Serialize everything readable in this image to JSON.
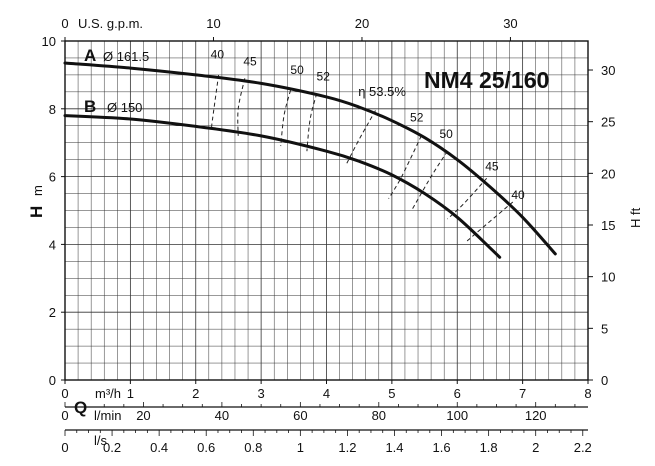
{
  "chart_data": {
    "type": "line",
    "title": "NM4 25/160",
    "xlabel": "Q",
    "ylabel_left": "H",
    "ylabel_left_unit": "m",
    "ylabel_right": "H ft",
    "xlim": [
      0,
      8
    ],
    "ylim": [
      0,
      10
    ],
    "grid": true,
    "axes": {
      "m3h": {
        "unit": "m³/h",
        "ticks": [
          "0",
          "1",
          "2",
          "3",
          "4",
          "5",
          "6",
          "7",
          "8"
        ]
      },
      "lmin": {
        "unit": "l/min",
        "ticks": [
          "0",
          "20",
          "40",
          "60",
          "80",
          "100",
          "120"
        ]
      },
      "ls": {
        "unit": "l/s",
        "ticks": [
          "0",
          "0.2",
          "0.4",
          "0.6",
          "0.8",
          "1",
          "1.2",
          "1.4",
          "1.6",
          "1.8",
          "2",
          "2.2"
        ]
      },
      "gpm": {
        "unit": "U.S. g.p.m.",
        "ticks": [
          "0",
          "10",
          "20",
          "30"
        ]
      },
      "left_m": {
        "ticks": [
          "0",
          "2",
          "4",
          "6",
          "8",
          "10"
        ]
      },
      "right_ft": {
        "ticks": [
          "0",
          "5",
          "10",
          "15",
          "20",
          "25",
          "30"
        ]
      }
    },
    "series": [
      {
        "name": "A",
        "diameter_label": "Ø 161.5",
        "x": [
          0,
          1,
          2,
          3,
          4,
          4.5,
          5,
          5.5,
          6,
          6.5,
          7,
          7.5
        ],
        "y": [
          9.35,
          9.2,
          9.0,
          8.75,
          8.35,
          8.05,
          7.65,
          7.15,
          6.5,
          5.7,
          4.8,
          3.72
        ]
      },
      {
        "name": "B",
        "diameter_label": "Ø 150",
        "x": [
          0,
          1,
          2,
          3,
          4,
          4.5,
          5,
          5.5,
          6,
          6.5,
          6.65
        ],
        "y": [
          7.8,
          7.7,
          7.48,
          7.2,
          6.75,
          6.45,
          6.05,
          5.5,
          4.8,
          3.9,
          3.62
        ]
      }
    ],
    "efficiency_labels": [
      "40",
      "45",
      "50",
      "52",
      "η 53.5%",
      "52",
      "50",
      "45",
      "40"
    ]
  }
}
